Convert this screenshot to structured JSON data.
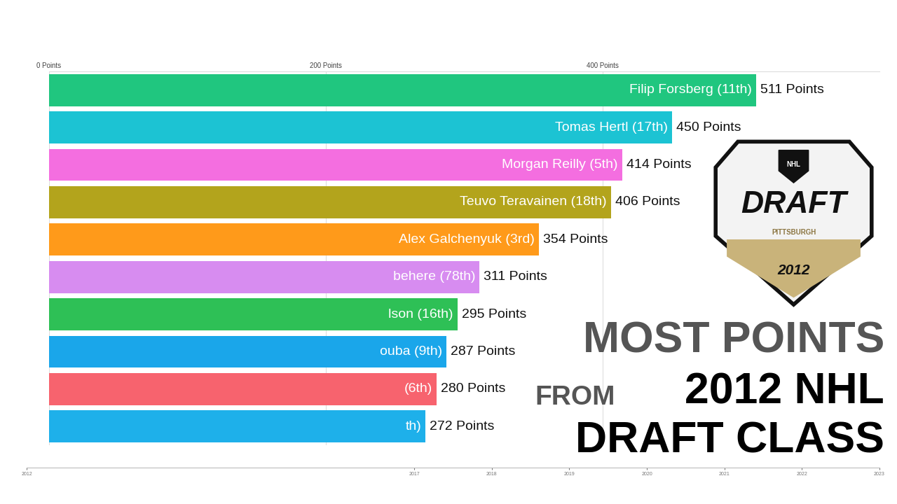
{
  "chart_data": [
    {
      "type": "bar",
      "orientation": "horizontal",
      "categories": [
        "Filip Forsberg (11th)",
        "Tomas Hertl (17th)",
        "Morgan Reilly (5th)",
        "Teuvo Teravainen (18th)",
        "Alex Galchenyuk (3rd)",
        "behere (78th)",
        "lson (16th)",
        "ouba (9th)",
        "(6th)",
        "th)"
      ],
      "values": [
        511,
        450,
        414,
        406,
        354,
        311,
        295,
        287,
        280,
        272
      ],
      "value_labels": [
        "511 Points",
        "450 Points",
        "414 Points",
        "406 Points",
        "354 Points",
        "311 Points",
        "295 Points",
        "287 Points",
        "280 Points",
        "272 Points"
      ],
      "colors": [
        "#20c67f",
        "#1cc3d3",
        "#f46ee0",
        "#b3a41c",
        "#ff9a1a",
        "#d78cf0",
        "#2ec056",
        "#1aa6ea",
        "#f7636e",
        "#1eb0ea"
      ],
      "xlim": [
        0,
        600
      ],
      "xticks": [
        {
          "value": 0,
          "label": "0 Points"
        },
        {
          "value": 200,
          "label": "200 Points"
        },
        {
          "value": 400,
          "label": "400 Points"
        }
      ],
      "grid": true,
      "data_labels": true,
      "tick_labels": "x"
    },
    {
      "type": "timeline",
      "xlim": [
        2012,
        2023
      ],
      "xticks": [
        2012,
        2017,
        2018,
        2019,
        2020,
        2021,
        2022,
        2023
      ]
    }
  ],
  "overlay_title": [
    "MOST POINTS",
    "FROM",
    "2012 NHL",
    "DRAFT CLASS"
  ],
  "logo": {
    "texts": [
      "NHL",
      "DRAFT",
      "PITTSBURGH",
      "2012"
    ]
  }
}
